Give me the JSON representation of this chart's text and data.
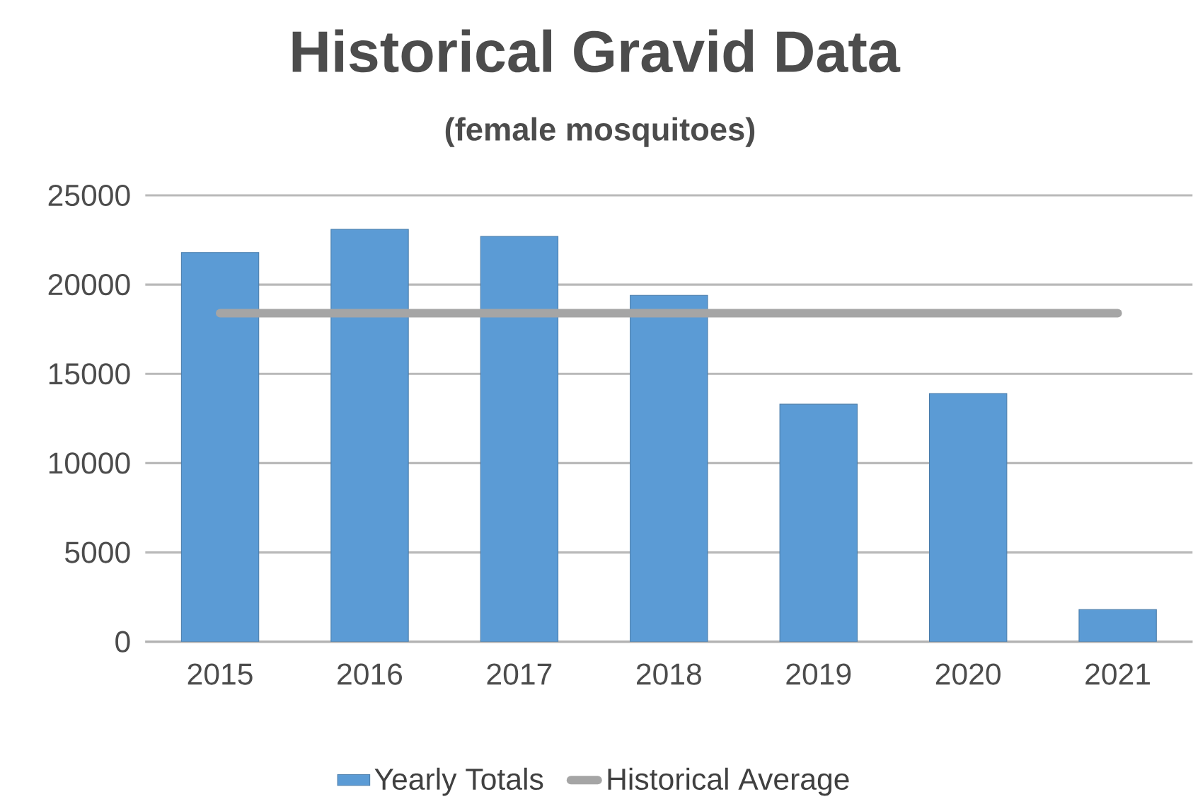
{
  "chart_data": {
    "type": "bar",
    "title": "Historical Gravid Data",
    "subtitle": "(female mosquitoes)",
    "categories": [
      "2015",
      "2016",
      "2017",
      "2018",
      "2019",
      "2020",
      "2021"
    ],
    "series": [
      {
        "name": "Yearly Totals",
        "color": "#5b9bd5",
        "values": [
          21800,
          23100,
          22700,
          19400,
          13300,
          13900,
          1800
        ]
      },
      {
        "name": "Historical Average",
        "type": "line",
        "color": "#a5a5a5",
        "values": [
          18400,
          18400,
          18400,
          18400,
          18400,
          18400,
          18400
        ]
      }
    ],
    "ylim": [
      0,
      25000
    ],
    "yticks": [
      0,
      5000,
      10000,
      15000,
      20000,
      25000
    ],
    "grid": "y",
    "legend": "bottom"
  }
}
